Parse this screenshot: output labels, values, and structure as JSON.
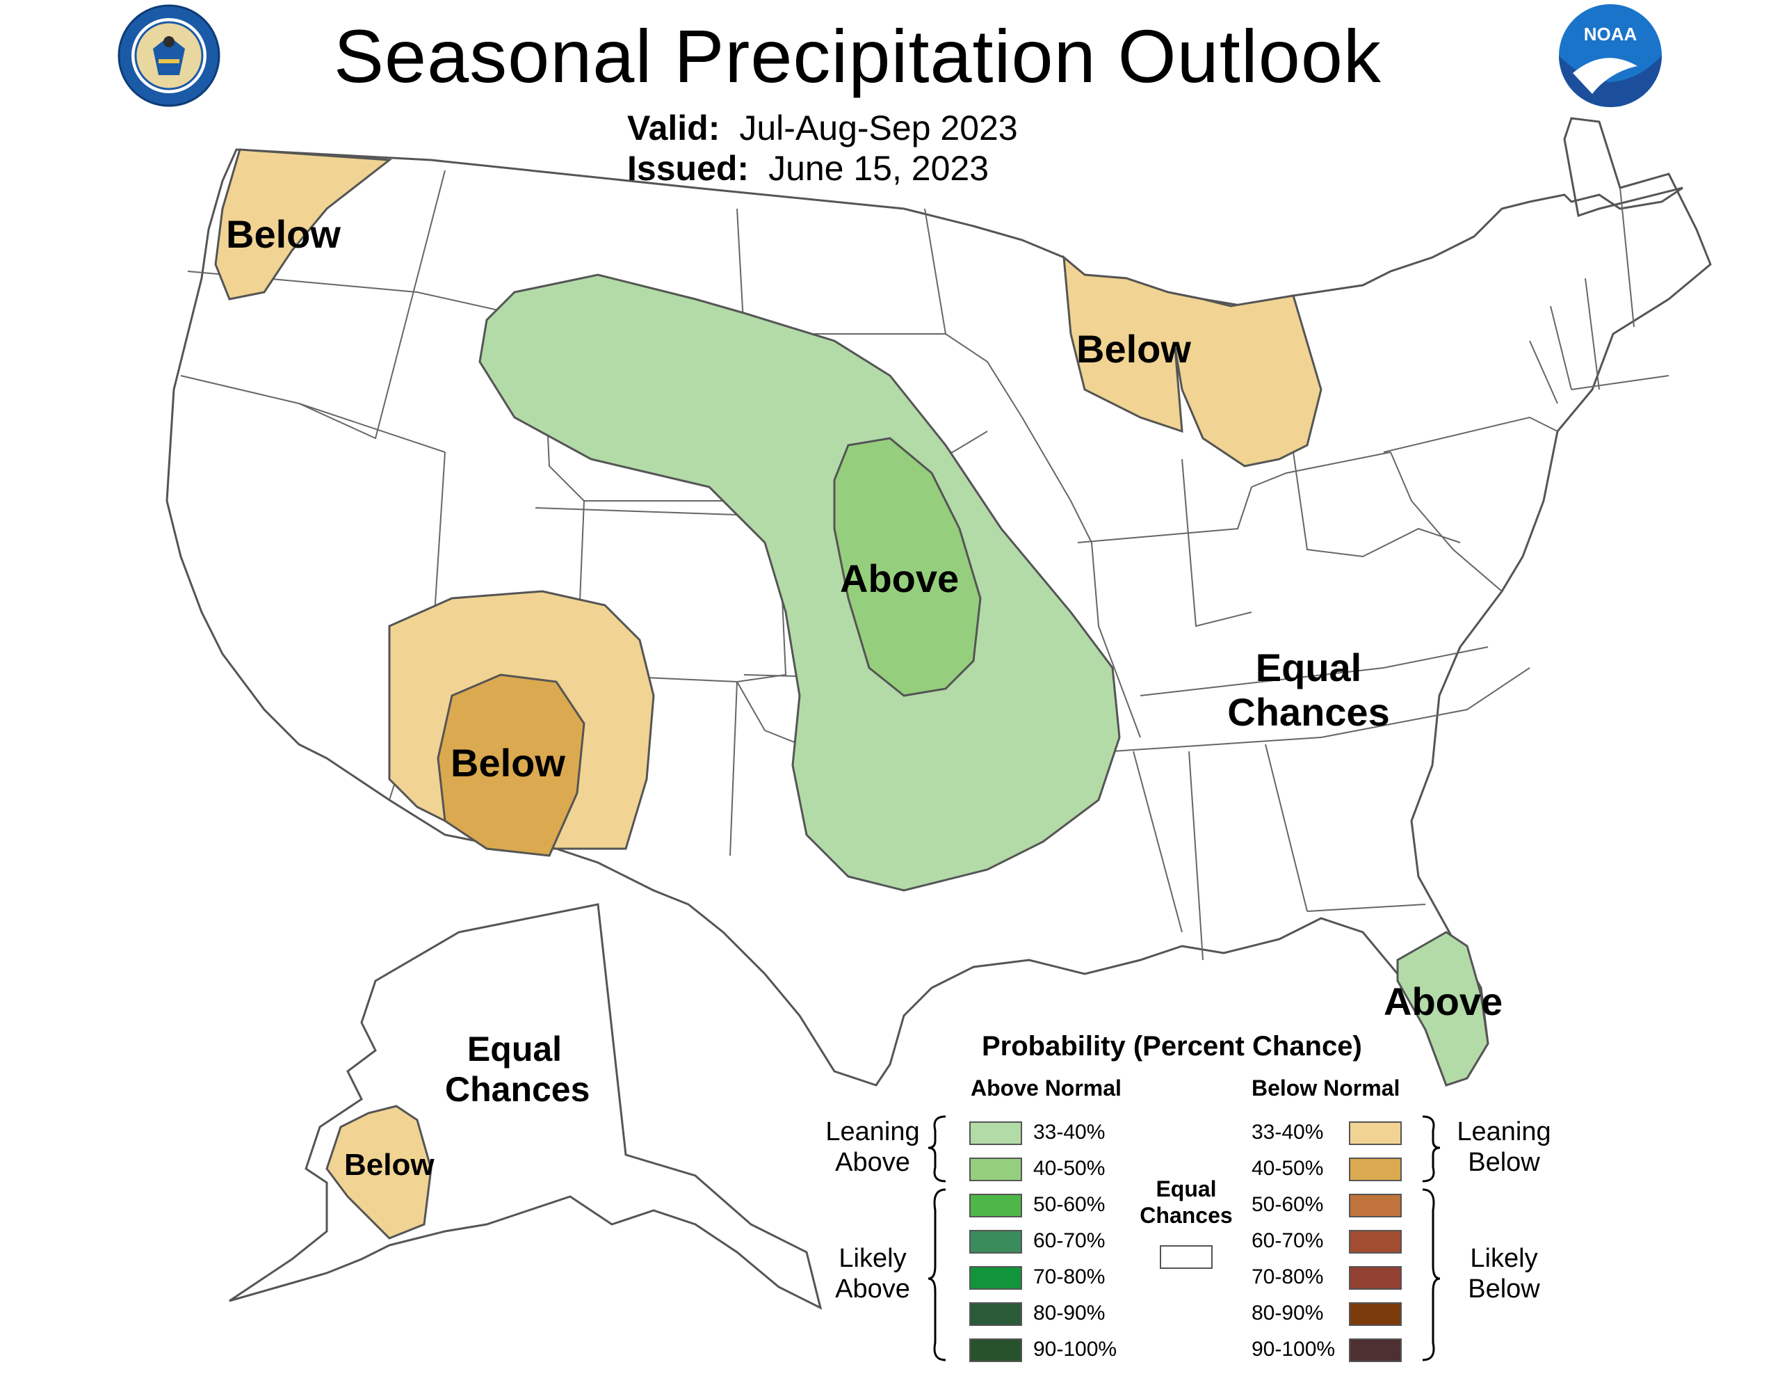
{
  "header": {
    "title": "Seasonal Precipitation Outlook",
    "valid_label": "Valid:",
    "valid_value": "Jul-Aug-Sep 2023",
    "issued_label": "Issued:",
    "issued_value": "June 15, 2023",
    "seal_text": "DEPARTMENT OF COMMERCE · UNITED STATES OF AMERICA",
    "noaa_text": "NOAA"
  },
  "regions": {
    "pacific_nw": "Below",
    "central_plains": "Above",
    "great_lakes": "Below",
    "southwest": "Below",
    "florida": "Above",
    "east": "Equal Chances",
    "alaska_ec": "Equal Chances",
    "alaska_below": "Below"
  },
  "legend": {
    "title": "Probability (Percent Chance)",
    "above_heading": "Above Normal",
    "below_heading": "Below Normal",
    "leaning_above": "Leaning Above",
    "likely_above": "Likely Above",
    "leaning_below": "Leaning Below",
    "likely_below": "Likely Below",
    "equal_chances": "Equal Chances",
    "above": [
      {
        "range": "33-40%",
        "color": "#b3dba8"
      },
      {
        "range": "40-50%",
        "color": "#95cf7d"
      },
      {
        "range": "50-60%",
        "color": "#4db847"
      },
      {
        "range": "60-70%",
        "color": "#3b8c5c"
      },
      {
        "range": "70-80%",
        "color": "#11953a"
      },
      {
        "range": "80-90%",
        "color": "#2a5a38"
      },
      {
        "range": "90-100%",
        "color": "#28522b"
      }
    ],
    "below": [
      {
        "range": "33-40%",
        "color": "#f1d493"
      },
      {
        "range": "40-50%",
        "color": "#dba950"
      },
      {
        "range": "50-60%",
        "color": "#c0733b"
      },
      {
        "range": "60-70%",
        "color": "#a24d31"
      },
      {
        "range": "70-80%",
        "color": "#934133"
      },
      {
        "range": "80-90%",
        "color": "#7b3b0b"
      },
      {
        "range": "90-100%",
        "color": "#4e2f32"
      }
    ],
    "ec_color": "#ffffff"
  }
}
